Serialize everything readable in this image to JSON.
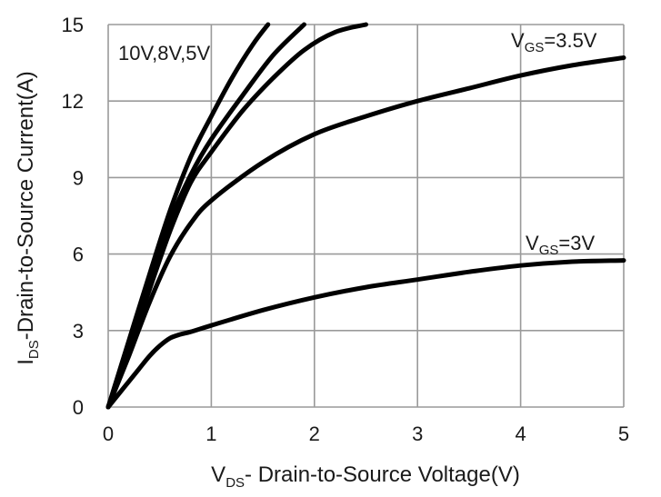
{
  "chart_data": {
    "type": "line",
    "title": "",
    "xlabel": {
      "prefix": "V",
      "sub": "DS",
      "rest": "- Drain-to-Source Voltage(V)"
    },
    "ylabel": {
      "prefix": "I",
      "sub": "DS",
      "rest": "-Drain-to-Source Current(A)"
    },
    "xlim": [
      0,
      5
    ],
    "ylim": [
      0,
      15
    ],
    "xticks": [
      0,
      1,
      2,
      3,
      4,
      5
    ],
    "yticks": [
      0,
      3,
      6,
      9,
      12,
      15
    ],
    "grid": true,
    "series": [
      {
        "name": "VGS=10V",
        "x": [
          0,
          0.2,
          0.4,
          0.6,
          0.8,
          1.0,
          1.2,
          1.4,
          1.55
        ],
        "y": [
          0,
          2.6,
          5.2,
          7.7,
          9.8,
          11.4,
          12.9,
          14.2,
          15
        ]
      },
      {
        "name": "VGS=8V",
        "x": [
          0,
          0.2,
          0.4,
          0.6,
          0.8,
          1.0,
          1.3,
          1.6,
          1.9
        ],
        "y": [
          0,
          2.4,
          4.9,
          7.3,
          9.1,
          10.5,
          12.2,
          13.8,
          15
        ]
      },
      {
        "name": "VGS=5V",
        "x": [
          0,
          0.2,
          0.4,
          0.6,
          0.8,
          1.0,
          1.3,
          1.6,
          1.9,
          2.2,
          2.5
        ],
        "y": [
          0,
          2.2,
          4.6,
          6.9,
          8.8,
          10.0,
          11.6,
          12.9,
          14.0,
          14.7,
          15
        ]
      },
      {
        "name": "VGS=3.5V",
        "x": [
          0,
          0.2,
          0.4,
          0.6,
          0.8,
          1.0,
          1.5,
          2.0,
          2.5,
          3.0,
          3.5,
          4.0,
          4.5,
          5.0
        ],
        "y": [
          0,
          2.0,
          4.1,
          5.9,
          7.2,
          8.1,
          9.6,
          10.7,
          11.4,
          12.0,
          12.5,
          13.0,
          13.4,
          13.7
        ]
      },
      {
        "name": "VGS=3V",
        "x": [
          0,
          0.1,
          0.2,
          0.3,
          0.4,
          0.5,
          0.6,
          0.7,
          0.8,
          1.0,
          1.5,
          2.0,
          2.5,
          3.0,
          3.5,
          4.0,
          4.5,
          5.0
        ],
        "y": [
          0,
          0.5,
          1.0,
          1.5,
          2.0,
          2.4,
          2.7,
          2.85,
          2.95,
          3.2,
          3.8,
          4.3,
          4.7,
          5.0,
          5.3,
          5.55,
          5.7,
          5.75
        ]
      }
    ],
    "annotations": [
      {
        "name": "label-group-high",
        "text": "10V,8V,5V"
      },
      {
        "name": "label-vgs-3-5",
        "prefix": "V",
        "sub": "GS",
        "rest": "=3.5V"
      },
      {
        "name": "label-vgs-3",
        "prefix": "V",
        "sub": "GS",
        "rest": "=3V"
      }
    ]
  }
}
